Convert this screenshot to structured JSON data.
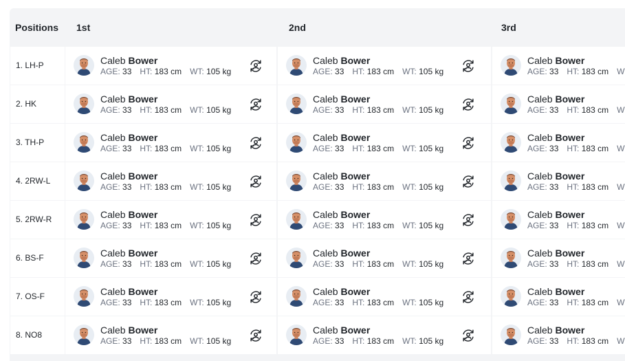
{
  "header": {
    "positions_label": "Positions",
    "columns": [
      "1st",
      "2nd",
      "3rd"
    ]
  },
  "player": {
    "first": "Caleb",
    "last": "Bower",
    "age_label": "AGE:",
    "age": "33",
    "ht_label": "HT:",
    "ht": "183 cm",
    "wt_label": "WT:",
    "wt": "105 kg"
  },
  "rows": [
    {
      "position": "1. LH-P"
    },
    {
      "position": "2. HK"
    },
    {
      "position": "3. TH-P"
    },
    {
      "position": "4. 2RW-L"
    },
    {
      "position": "5. 2RW-R"
    },
    {
      "position": "6. BS-F"
    },
    {
      "position": "7. OS-F"
    },
    {
      "position": "8. NO8"
    }
  ],
  "icons": {
    "avatar": "player-avatar",
    "swap": "swap-user-icon"
  },
  "colors": {
    "header_bg": "#f3f4f6",
    "cell_bg": "#ffffff",
    "muted_text": "#6b7280"
  }
}
